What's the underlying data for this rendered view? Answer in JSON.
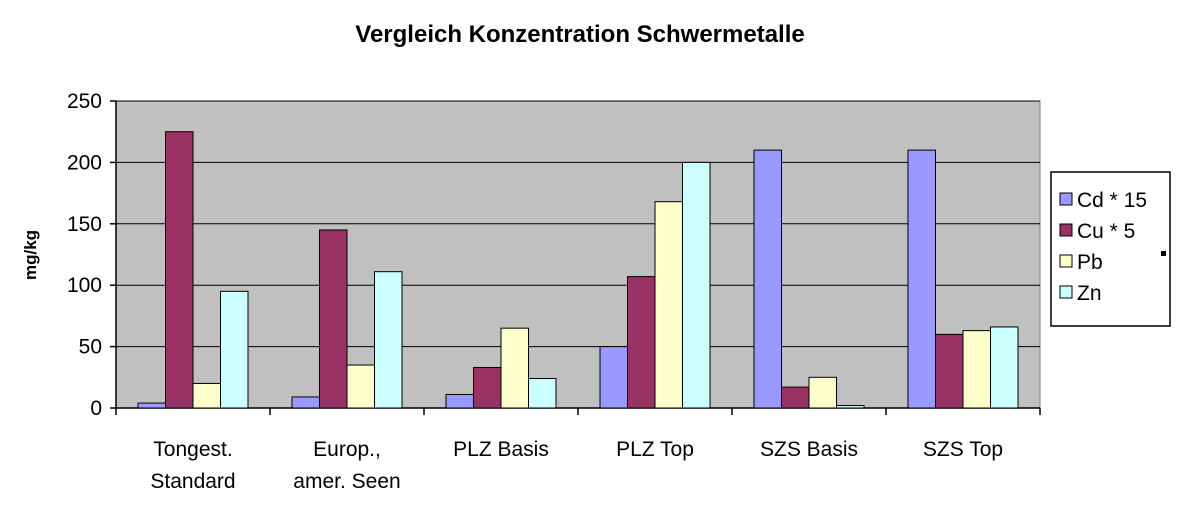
{
  "chart_data": {
    "type": "bar",
    "title": "Vergleich Konzentration Schwermetalle",
    "xlabel": "",
    "ylabel": "mg/kg",
    "ylim": [
      0,
      250
    ],
    "yticks": [
      "0",
      "50",
      "100",
      "150",
      "200",
      "250"
    ],
    "ytick_values": [
      0,
      50,
      100,
      150,
      200,
      250
    ],
    "grid": true,
    "legend_position": "right",
    "plot_background": "#c0c0c0",
    "categories": [
      [
        "Tongest.",
        "Standard"
      ],
      [
        "Europ.,",
        "amer. Seen"
      ],
      [
        "PLZ Basis"
      ],
      [
        "PLZ Top"
      ],
      [
        "SZS Basis"
      ],
      [
        "SZS Top"
      ]
    ],
    "series": [
      {
        "name": "Cd * 15",
        "color": "#9999ff",
        "values": [
          4,
          9,
          11,
          50,
          210,
          210
        ]
      },
      {
        "name": "Cu * 5",
        "color": "#993366",
        "values": [
          225,
          145,
          33,
          107,
          17,
          60
        ]
      },
      {
        "name": "Pb",
        "color": "#ffffcc",
        "values": [
          20,
          35,
          65,
          168,
          25,
          63
        ]
      },
      {
        "name": "Zn",
        "color": "#ccffff",
        "values": [
          95,
          111,
          24,
          200,
          2,
          66
        ]
      }
    ]
  }
}
